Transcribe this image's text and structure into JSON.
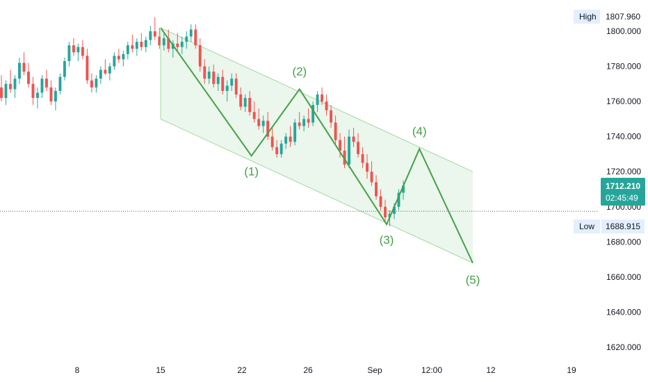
{
  "chart_data": {
    "type": "candlestick",
    "title": "",
    "y_axis": {
      "side": "right",
      "range": [
        1612,
        1812
      ],
      "ticks": [
        1620,
        1640,
        1660,
        1680,
        1700,
        1720,
        1740,
        1760,
        1780,
        1800
      ],
      "tick_labels": [
        "1620.000",
        "1640.000",
        "1660.000",
        "1680.000",
        "1700.000",
        "1720.000",
        "1740.000",
        "1760.000",
        "1780.000",
        "1800.000"
      ]
    },
    "x_axis": {
      "tick_labels": [
        "8",
        "15",
        "22",
        "26",
        "Sep",
        "12:00",
        "12",
        "19"
      ]
    },
    "grid": false,
    "colors": {
      "up": "#26a69a",
      "down": "#ef5350",
      "wave": "#43a047",
      "channel_fill": "#e8f5e9",
      "channel_border": "#a5d6a7",
      "price_tag": "#26a69a",
      "high_low_tag": "#e3effd"
    },
    "high": {
      "label": "High",
      "value": "1807.960"
    },
    "low": {
      "label": "Low",
      "value": "1688.915"
    },
    "last_price": {
      "value": "1712.210",
      "countdown": "02:45:49",
      "level": 1697.5
    },
    "candles_ohlc": [
      [
        1768,
        1775,
        1760,
        1762
      ],
      [
        1762,
        1772,
        1758,
        1770
      ],
      [
        1770,
        1778,
        1765,
        1767
      ],
      [
        1767,
        1775,
        1762,
        1773
      ],
      [
        1773,
        1785,
        1770,
        1782
      ],
      [
        1782,
        1788,
        1775,
        1777
      ],
      [
        1777,
        1782,
        1768,
        1770
      ],
      [
        1770,
        1774,
        1758,
        1762
      ],
      [
        1762,
        1768,
        1756,
        1765
      ],
      [
        1765,
        1775,
        1762,
        1773
      ],
      [
        1773,
        1778,
        1766,
        1768
      ],
      [
        1768,
        1772,
        1758,
        1760
      ],
      [
        1760,
        1768,
        1755,
        1766
      ],
      [
        1766,
        1776,
        1764,
        1774
      ],
      [
        1774,
        1785,
        1772,
        1783
      ],
      [
        1783,
        1794,
        1780,
        1792
      ],
      [
        1792,
        1796,
        1786,
        1788
      ],
      [
        1788,
        1793,
        1783,
        1791
      ],
      [
        1791,
        1795,
        1784,
        1786
      ],
      [
        1786,
        1790,
        1770,
        1772
      ],
      [
        1772,
        1776,
        1765,
        1768
      ],
      [
        1768,
        1775,
        1765,
        1773
      ],
      [
        1773,
        1780,
        1770,
        1778
      ],
      [
        1778,
        1784,
        1775,
        1776
      ],
      [
        1776,
        1782,
        1772,
        1780
      ],
      [
        1780,
        1788,
        1778,
        1786
      ],
      [
        1786,
        1790,
        1782,
        1784
      ],
      [
        1784,
        1789,
        1780,
        1787
      ],
      [
        1787,
        1794,
        1784,
        1792
      ],
      [
        1792,
        1798,
        1788,
        1790
      ],
      [
        1790,
        1796,
        1786,
        1794
      ],
      [
        1794,
        1799,
        1789,
        1791
      ],
      [
        1791,
        1797,
        1788,
        1795
      ],
      [
        1795,
        1803,
        1792,
        1800
      ],
      [
        1800,
        1808,
        1795,
        1797
      ],
      [
        1797,
        1802,
        1790,
        1792
      ],
      [
        1792,
        1799,
        1789,
        1796
      ],
      [
        1796,
        1801,
        1788,
        1790
      ],
      [
        1790,
        1795,
        1785,
        1793
      ],
      [
        1793,
        1799,
        1789,
        1791
      ],
      [
        1791,
        1797,
        1787,
        1794
      ],
      [
        1794,
        1800,
        1790,
        1797
      ],
      [
        1797,
        1804,
        1794,
        1801
      ],
      [
        1801,
        1804,
        1790,
        1792
      ],
      [
        1792,
        1796,
        1777,
        1780
      ],
      [
        1780,
        1784,
        1770,
        1773
      ],
      [
        1773,
        1780,
        1770,
        1777
      ],
      [
        1777,
        1781,
        1768,
        1770
      ],
      [
        1770,
        1776,
        1766,
        1774
      ],
      [
        1774,
        1778,
        1764,
        1766
      ],
      [
        1766,
        1772,
        1760,
        1769
      ],
      [
        1769,
        1776,
        1766,
        1773
      ],
      [
        1773,
        1776,
        1762,
        1764
      ],
      [
        1764,
        1768,
        1755,
        1757
      ],
      [
        1757,
        1764,
        1754,
        1762
      ],
      [
        1762,
        1766,
        1752,
        1754
      ],
      [
        1754,
        1760,
        1748,
        1750
      ],
      [
        1750,
        1756,
        1744,
        1746
      ],
      [
        1746,
        1752,
        1742,
        1749
      ],
      [
        1749,
        1754,
        1738,
        1740
      ],
      [
        1740,
        1745,
        1732,
        1734
      ],
      [
        1734,
        1738,
        1728,
        1730
      ],
      [
        1730,
        1738,
        1728,
        1736
      ],
      [
        1736,
        1742,
        1733,
        1740
      ],
      [
        1740,
        1746,
        1734,
        1737
      ],
      [
        1737,
        1750,
        1735,
        1748
      ],
      [
        1748,
        1754,
        1744,
        1746
      ],
      [
        1746,
        1752,
        1743,
        1750
      ],
      [
        1750,
        1756,
        1745,
        1748
      ],
      [
        1748,
        1760,
        1746,
        1758
      ],
      [
        1758,
        1766,
        1754,
        1764
      ],
      [
        1764,
        1768,
        1758,
        1760
      ],
      [
        1760,
        1764,
        1752,
        1755
      ],
      [
        1755,
        1758,
        1745,
        1748
      ],
      [
        1748,
        1752,
        1736,
        1738
      ],
      [
        1738,
        1742,
        1728,
        1732
      ],
      [
        1732,
        1740,
        1722,
        1724
      ],
      [
        1724,
        1744,
        1722,
        1740
      ],
      [
        1740,
        1745,
        1734,
        1737
      ],
      [
        1737,
        1742,
        1728,
        1730
      ],
      [
        1730,
        1734,
        1722,
        1725
      ],
      [
        1725,
        1730,
        1716,
        1720
      ],
      [
        1720,
        1726,
        1712,
        1714
      ],
      [
        1714,
        1718,
        1704,
        1706
      ],
      [
        1706,
        1710,
        1698,
        1700
      ],
      [
        1700,
        1704,
        1692,
        1694
      ],
      [
        1694,
        1698,
        1689,
        1696
      ],
      [
        1696,
        1702,
        1693,
        1700
      ],
      [
        1700,
        1710,
        1698,
        1708
      ],
      [
        1708,
        1715,
        1704,
        1712
      ]
    ],
    "elliott_wave": [
      {
        "label": "",
        "x_frac": 0.0,
        "value": 1802
      },
      {
        "label": "(1)",
        "x_frac": 0.291,
        "value": 1729
      },
      {
        "label": "(2)",
        "x_frac": 0.445,
        "value": 1767
      },
      {
        "label": "(3)",
        "x_frac": 0.724,
        "value": 1690
      },
      {
        "label": "(4)",
        "x_frac": 0.829,
        "value": 1733
      },
      {
        "label": "(5)",
        "x_frac": 1.0,
        "value": 1668
      }
    ],
    "channel": {
      "upper_start": 1802,
      "upper_end": 1720,
      "lower_start": 1750,
      "lower_end": 1668
    }
  }
}
